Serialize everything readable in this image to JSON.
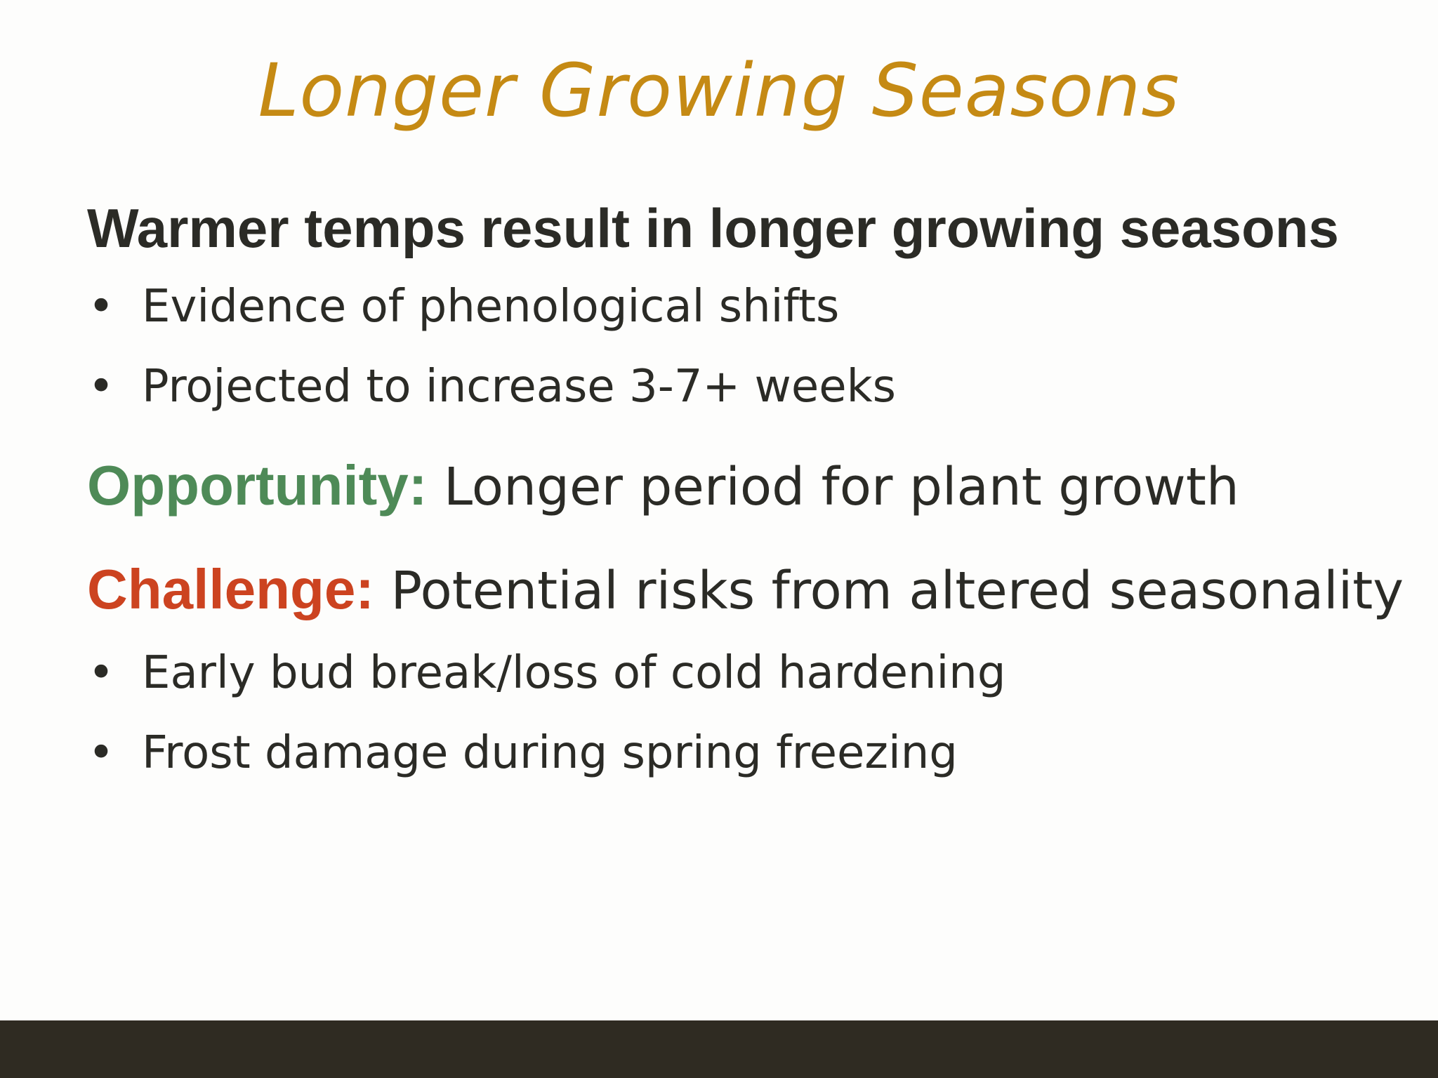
{
  "slide": {
    "title": "Longer Growing Seasons",
    "heading": "Warmer temps result in longer growing seasons",
    "heading_bullets": [
      "Evidence of phenological shifts",
      "Projected to increase 3-7+ weeks"
    ],
    "opportunity": {
      "label": "Opportunity:",
      "text": " Longer period for plant growth",
      "label_color": "#4e8a57"
    },
    "challenge": {
      "label": "Challenge:",
      "text": " Potential risks from altered seasonality",
      "label_color": "#cc4320"
    },
    "challenge_bullets": [
      "Early bud break/loss of cold hardening",
      "Frost damage during spring freezing"
    ],
    "bullet_glyph": "•"
  },
  "colors": {
    "title": "#c58a14",
    "body_text": "#2b2b26",
    "footer_bar": "#2f2b22",
    "background": "#fdfdfc"
  }
}
